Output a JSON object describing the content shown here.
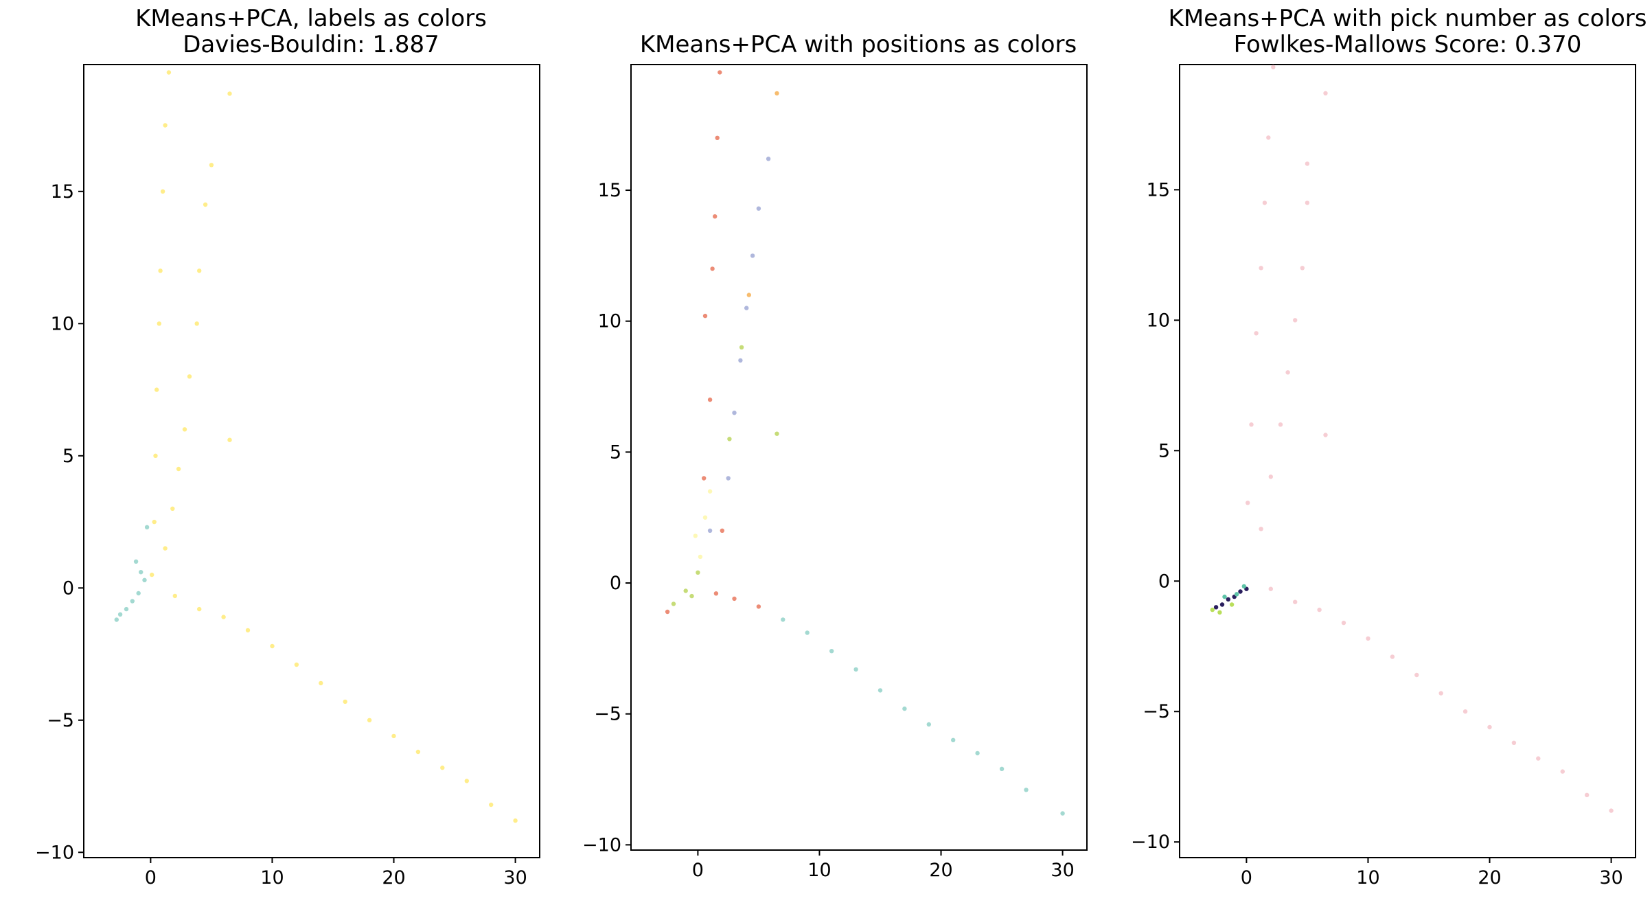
{
  "chart_data": [
    {
      "type": "scatter",
      "title": "KMeans+PCA, labels as colors",
      "subtitle": "Davies-Bouldin: 1.887",
      "xlabel": "",
      "ylabel": "",
      "xlim": [
        -5.5,
        32
      ],
      "ylim": [
        -10.2,
        19.8
      ],
      "xticks": [
        0,
        10,
        20,
        30
      ],
      "yticks": [
        -10,
        -5,
        0,
        5,
        10,
        15
      ],
      "grid": false,
      "legend": "none",
      "series": [
        {
          "color": "#ffed8a",
          "values": [
            {
              "x": 1.5,
              "y": 19.5
            },
            {
              "x": 1.2,
              "y": 17.5
            },
            {
              "x": 1.0,
              "y": 15.0
            },
            {
              "x": 0.8,
              "y": 12.0
            },
            {
              "x": 0.7,
              "y": 10.0
            },
            {
              "x": 0.5,
              "y": 7.5
            },
            {
              "x": 0.4,
              "y": 5.0
            },
            {
              "x": 0.3,
              "y": 2.5
            },
            {
              "x": 0.1,
              "y": 0.5
            },
            {
              "x": 4.5,
              "y": 14.5
            },
            {
              "x": 4.0,
              "y": 12.0
            },
            {
              "x": 3.8,
              "y": 10.0
            },
            {
              "x": 3.2,
              "y": 8.0
            },
            {
              "x": 2.8,
              "y": 6.0
            },
            {
              "x": 2.3,
              "y": 4.5
            },
            {
              "x": 1.8,
              "y": 3.0
            },
            {
              "x": 1.2,
              "y": 1.5
            },
            {
              "x": 5.0,
              "y": 16.0
            },
            {
              "x": 6.5,
              "y": 18.7
            },
            {
              "x": 6.5,
              "y": 5.6
            },
            {
              "x": 2.0,
              "y": -0.3
            },
            {
              "x": 4.0,
              "y": -0.8
            },
            {
              "x": 6.0,
              "y": -1.1
            },
            {
              "x": 8.0,
              "y": -1.6
            },
            {
              "x": 10.0,
              "y": -2.2
            },
            {
              "x": 12.0,
              "y": -2.9
            },
            {
              "x": 14.0,
              "y": -3.6
            },
            {
              "x": 16.0,
              "y": -4.3
            },
            {
              "x": 18.0,
              "y": -5.0
            },
            {
              "x": 20.0,
              "y": -5.6
            },
            {
              "x": 22.0,
              "y": -6.2
            },
            {
              "x": 24.0,
              "y": -6.8
            },
            {
              "x": 26.0,
              "y": -7.3
            },
            {
              "x": 28.0,
              "y": -8.2
            },
            {
              "x": 30.0,
              "y": -8.8
            }
          ]
        },
        {
          "color": "#a3d9d1",
          "values": [
            {
              "x": -2.5,
              "y": -1.0
            },
            {
              "x": -2.0,
              "y": -0.8
            },
            {
              "x": -1.5,
              "y": -0.5
            },
            {
              "x": -1.0,
              "y": -0.2
            },
            {
              "x": -0.5,
              "y": 0.3
            },
            {
              "x": -1.2,
              "y": 1.0
            },
            {
              "x": -0.3,
              "y": 2.3
            },
            {
              "x": -2.8,
              "y": -1.2
            },
            {
              "x": -0.8,
              "y": 0.6
            }
          ]
        }
      ]
    },
    {
      "type": "scatter",
      "title": "KMeans+PCA with positions as colors",
      "subtitle": "",
      "xlabel": "",
      "ylabel": "",
      "xlim": [
        -5.5,
        32
      ],
      "ylim": [
        -10.2,
        19.8
      ],
      "xticks": [
        0,
        10,
        20,
        30
      ],
      "yticks": [
        -10,
        -5,
        0,
        5,
        10,
        15
      ],
      "grid": false,
      "legend": "none",
      "series": [
        {
          "color": "#ec8c76",
          "values": [
            {
              "x": 1.8,
              "y": 19.5
            },
            {
              "x": 1.6,
              "y": 17.0
            },
            {
              "x": 1.4,
              "y": 14.0
            },
            {
              "x": 1.2,
              "y": 12.0
            },
            {
              "x": 0.6,
              "y": 10.2
            },
            {
              "x": 1.0,
              "y": 7.0
            },
            {
              "x": 0.5,
              "y": 4.0
            },
            {
              "x": 1.5,
              "y": -0.4
            },
            {
              "x": 3.0,
              "y": -0.6
            },
            {
              "x": 5.0,
              "y": -0.9
            },
            {
              "x": -2.5,
              "y": -1.1
            },
            {
              "x": 2.0,
              "y": 2.0
            }
          ]
        },
        {
          "color": "#a3d9d1",
          "values": [
            {
              "x": 7.0,
              "y": -1.4
            },
            {
              "x": 9.0,
              "y": -1.9
            },
            {
              "x": 11.0,
              "y": -2.6
            },
            {
              "x": 13.0,
              "y": -3.3
            },
            {
              "x": 15.0,
              "y": -4.1
            },
            {
              "x": 17.0,
              "y": -4.8
            },
            {
              "x": 19.0,
              "y": -5.4
            },
            {
              "x": 21.0,
              "y": -6.0
            },
            {
              "x": 23.0,
              "y": -6.5
            },
            {
              "x": 25.0,
              "y": -7.1
            },
            {
              "x": 27.0,
              "y": -7.9
            },
            {
              "x": 30.0,
              "y": -8.8
            }
          ]
        },
        {
          "color": "#afb7dc",
          "values": [
            {
              "x": 5.0,
              "y": 14.3
            },
            {
              "x": 4.5,
              "y": 12.5
            },
            {
              "x": 4.0,
              "y": 10.5
            },
            {
              "x": 3.5,
              "y": 8.5
            },
            {
              "x": 3.0,
              "y": 6.5
            },
            {
              "x": 2.5,
              "y": 4.0
            },
            {
              "x": 1.0,
              "y": 2.0
            },
            {
              "x": 5.8,
              "y": 16.2
            }
          ]
        },
        {
          "color": "#c6dc78",
          "values": [
            {
              "x": -2.0,
              "y": -0.8
            },
            {
              "x": -1.0,
              "y": -0.3
            },
            {
              "x": 0.0,
              "y": 0.4
            },
            {
              "x": -0.5,
              "y": -0.5
            },
            {
              "x": 3.6,
              "y": 9.0
            },
            {
              "x": 2.6,
              "y": 5.5
            },
            {
              "x": 6.5,
              "y": 5.7
            }
          ]
        },
        {
          "color": "#fdf8b6",
          "values": [
            {
              "x": 0.2,
              "y": 1.0
            },
            {
              "x": 0.6,
              "y": 2.5
            },
            {
              "x": 1.0,
              "y": 3.5
            },
            {
              "x": -0.2,
              "y": 1.8
            }
          ]
        },
        {
          "color": "#f7bc6e",
          "values": [
            {
              "x": 6.5,
              "y": 18.7
            },
            {
              "x": 4.2,
              "y": 11.0
            }
          ]
        }
      ]
    },
    {
      "type": "scatter",
      "title": "KMeans+PCA with pick number as colors",
      "subtitle": "Fowlkes-Mallows Score: 0.370",
      "xlabel": "",
      "ylabel": "",
      "xlim": [
        -5.5,
        32
      ],
      "ylim": [
        -10.6,
        19.8
      ],
      "xticks": [
        0,
        10,
        20,
        30
      ],
      "yticks": [
        -10,
        -5,
        0,
        5,
        10,
        15
      ],
      "grid": false,
      "legend": "none",
      "series": [
        {
          "color": "#f6cdd3",
          "values": [
            {
              "x": 2.2,
              "y": 19.7
            },
            {
              "x": 1.8,
              "y": 17.0
            },
            {
              "x": 1.5,
              "y": 14.5
            },
            {
              "x": 1.2,
              "y": 12.0
            },
            {
              "x": 0.8,
              "y": 9.5
            },
            {
              "x": 0.4,
              "y": 6.0
            },
            {
              "x": 0.1,
              "y": 3.0
            },
            {
              "x": 5.0,
              "y": 14.5
            },
            {
              "x": 4.6,
              "y": 12.0
            },
            {
              "x": 4.0,
              "y": 10.0
            },
            {
              "x": 3.4,
              "y": 8.0
            },
            {
              "x": 2.8,
              "y": 6.0
            },
            {
              "x": 2.0,
              "y": 4.0
            },
            {
              "x": 1.2,
              "y": 2.0
            },
            {
              "x": 5.0,
              "y": 16.0
            },
            {
              "x": 6.5,
              "y": 18.7
            },
            {
              "x": 6.5,
              "y": 5.6
            },
            {
              "x": 2.0,
              "y": -0.3
            },
            {
              "x": 4.0,
              "y": -0.8
            },
            {
              "x": 6.0,
              "y": -1.1
            },
            {
              "x": 8.0,
              "y": -1.6
            },
            {
              "x": 10.0,
              "y": -2.2
            },
            {
              "x": 12.0,
              "y": -2.9
            },
            {
              "x": 14.0,
              "y": -3.6
            },
            {
              "x": 16.0,
              "y": -4.3
            },
            {
              "x": 18.0,
              "y": -5.0
            },
            {
              "x": 20.0,
              "y": -5.6
            },
            {
              "x": 22.0,
              "y": -6.2
            },
            {
              "x": 24.0,
              "y": -6.8
            },
            {
              "x": 26.0,
              "y": -7.3
            },
            {
              "x": 28.0,
              "y": -8.2
            },
            {
              "x": 30.0,
              "y": -8.8
            }
          ]
        },
        {
          "color": "#2a1f5e",
          "values": [
            {
              "x": -2.5,
              "y": -1.0
            },
            {
              "x": -2.0,
              "y": -0.9
            },
            {
              "x": -1.5,
              "y": -0.7
            },
            {
              "x": -1.0,
              "y": -0.6
            },
            {
              "x": -0.5,
              "y": -0.4
            },
            {
              "x": 0.0,
              "y": -0.3
            }
          ]
        },
        {
          "color": "#5ec4a8",
          "values": [
            {
              "x": -1.8,
              "y": -0.6
            },
            {
              "x": -0.8,
              "y": -0.5
            },
            {
              "x": -0.2,
              "y": -0.2
            }
          ]
        },
        {
          "color": "#b9de5a",
          "values": [
            {
              "x": -2.8,
              "y": -1.1
            },
            {
              "x": -2.2,
              "y": -1.2
            },
            {
              "x": -1.2,
              "y": -0.9
            }
          ]
        }
      ]
    }
  ]
}
